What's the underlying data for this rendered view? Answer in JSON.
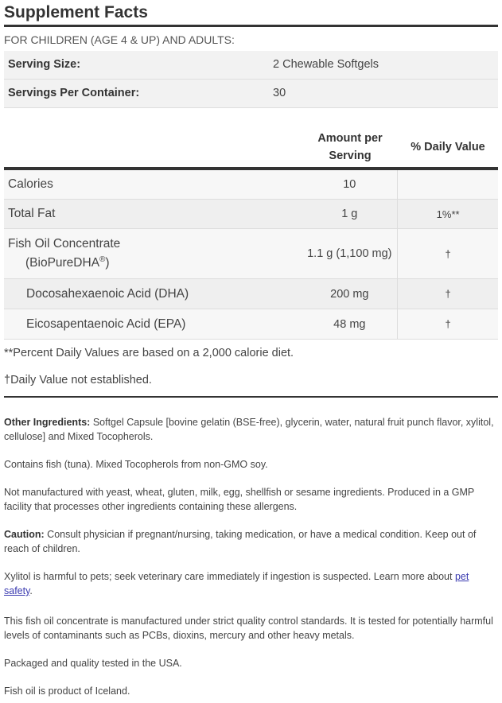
{
  "title": "Supplement Facts",
  "audience": "FOR CHILDREN (AGE 4 & UP) AND ADULTS:",
  "serving": [
    {
      "label": "Serving Size:",
      "value": "2 Chewable Softgels"
    },
    {
      "label": "Servings Per Container:",
      "value": "30"
    }
  ],
  "header": {
    "amount_line1": "Amount per",
    "amount_line2": "Serving",
    "dv": "% Daily Value"
  },
  "rows": [
    {
      "name": "Calories",
      "amount": "10",
      "dv": ""
    },
    {
      "name": "Total Fat",
      "amount": "1 g",
      "dv": "1%**"
    },
    {
      "name": "Fish Oil Concentrate",
      "name2": "(BioPureDHA",
      "sup": "®",
      "close": ")",
      "amount": "1.1 g (1,100 mg)",
      "dv": "†"
    },
    {
      "name": "Docosahexaenoic Acid (DHA)",
      "amount": "200 mg",
      "dv": "†"
    },
    {
      "name": "Eicosapentaenoic Acid (EPA)",
      "amount": "48 mg",
      "dv": "†"
    }
  ],
  "footnotes": [
    "**Percent Daily Values are based on a 2,000 calorie diet.",
    "†Daily Value not established."
  ],
  "other_ingredients": {
    "label": "Other Ingredients:",
    "text": " Softgel Capsule [bovine gelatin (BSE-free), glycerin, water, natural fruit punch flavor, xylitol, cellulose] and Mixed Tocopherols."
  },
  "contains": "Contains fish (tuna). Mixed Tocopherols from non-GMO soy.",
  "allergens": "Not manufactured with yeast, wheat, gluten, milk, egg, shellfish or sesame ingredients. Produced in a GMP facility that processes other ingredients containing these allergens.",
  "caution": {
    "label": "Caution:",
    "text": " Consult physician if pregnant/nursing, taking medication, or have a medical condition. Keep out of reach of children."
  },
  "xylitol": {
    "text": "Xylitol is harmful to pets; seek veterinary care immediately if ingestion is suspected. Learn more about ",
    "link": "pet safety",
    "end": "."
  },
  "quality": "This fish oil concentrate is manufactured under strict quality control standards. It is tested for potentially harmful levels of contaminants such as PCBs, dioxins, mercury and other heavy metals.",
  "packaged": "Packaged and quality tested in the USA.",
  "origin": "Fish oil is product of Iceland."
}
